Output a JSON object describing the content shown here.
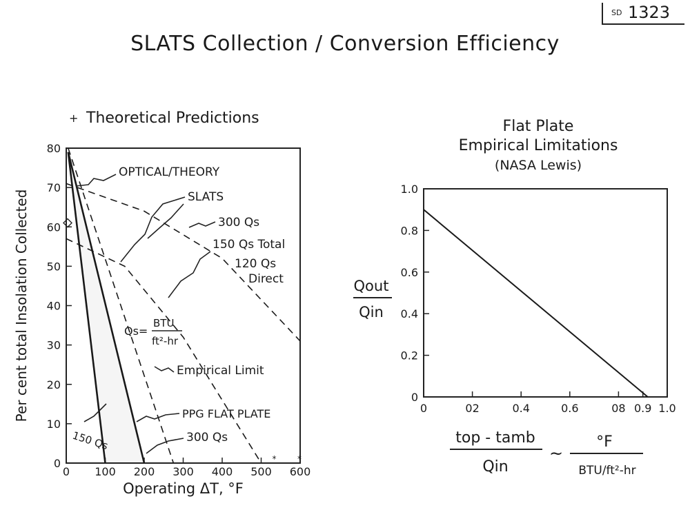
{
  "doc_id_prefix": "SD",
  "doc_id_number": "1323",
  "page_title": "SLATS Collection / Conversion Efficiency",
  "chart_data": [
    {
      "type": "line",
      "title": "Theoretical Predictions",
      "xlabel": "Operating ΔT, °F",
      "ylabel": "Per cent total Insolation Collected",
      "xlim": [
        0,
        600
      ],
      "ylim": [
        0,
        80
      ],
      "x_ticks": [
        "0",
        "100",
        "200",
        "300",
        "400",
        "500",
        "600"
      ],
      "y_ticks": [
        "0",
        "10",
        "20",
        "30",
        "40",
        "50",
        "60",
        "70",
        "80"
      ],
      "series": [
        {
          "name": "OPTICAL/THEORY",
          "style": "dashed",
          "x": [
            5,
            275
          ],
          "y": [
            80,
            0
          ]
        },
        {
          "name": "300 Qs",
          "style": "dashed",
          "x": [
            0,
            200,
            400,
            600
          ],
          "y": [
            71,
            64,
            52,
            31
          ]
        },
        {
          "name": "150 Qs Total",
          "style": "dashed",
          "x": [
            0,
            150,
            300,
            500
          ],
          "y": [
            57,
            50,
            32,
            0
          ]
        },
        {
          "name": "150 Qs",
          "style": "solid",
          "x": [
            5,
            100
          ],
          "y": [
            79,
            0
          ]
        },
        {
          "name": "300 Qs",
          "style": "solid",
          "x": [
            5,
            200
          ],
          "y": [
            79,
            0
          ]
        }
      ],
      "annotations": {
        "optical_theory": "OPTICAL/THEORY",
        "slats": "SLATS",
        "qs300": "300 Qs",
        "qs150_total": "150 Qs Total",
        "qs120_direct_1": "120 Qs",
        "qs120_direct_2": "Direct",
        "qs_def_lhs": "Qs=",
        "qs_def_num": "BTU",
        "qs_def_den": "ft²-hr",
        "empirical_limit": "Empirical Limit",
        "ppg": "PPG FLAT PLATE",
        "qs150_solid": "150 Qs",
        "qs300_solid": "300 Qs"
      }
    },
    {
      "type": "line",
      "title_lines": [
        "Flat Plate",
        "Empirical Limitations",
        "(NASA Lewis)"
      ],
      "ylabel_num": "Qout",
      "ylabel_den": "Qin",
      "xlabel_num": "top - tamb",
      "xlabel_den": "Qin",
      "xlabel_tilde": "~",
      "xlabel_unit_num": "°F",
      "xlabel_unit_den": "BTU/ft²-hr",
      "xlim": [
        0,
        1.0
      ],
      "ylim": [
        0,
        1.0
      ],
      "x_ticks": [
        "0",
        "02",
        "0.4",
        "0.6",
        "08",
        "0.9",
        "1.0"
      ],
      "x_tick_values": [
        0,
        0.2,
        0.4,
        0.6,
        0.8,
        0.9,
        1.0
      ],
      "y_ticks": [
        "0",
        "0.2",
        "0.4",
        "0.6",
        "0.8",
        "1.0"
      ],
      "series": [
        {
          "x": [
            0,
            0.92
          ],
          "y": [
            0.9,
            0
          ]
        }
      ]
    }
  ]
}
